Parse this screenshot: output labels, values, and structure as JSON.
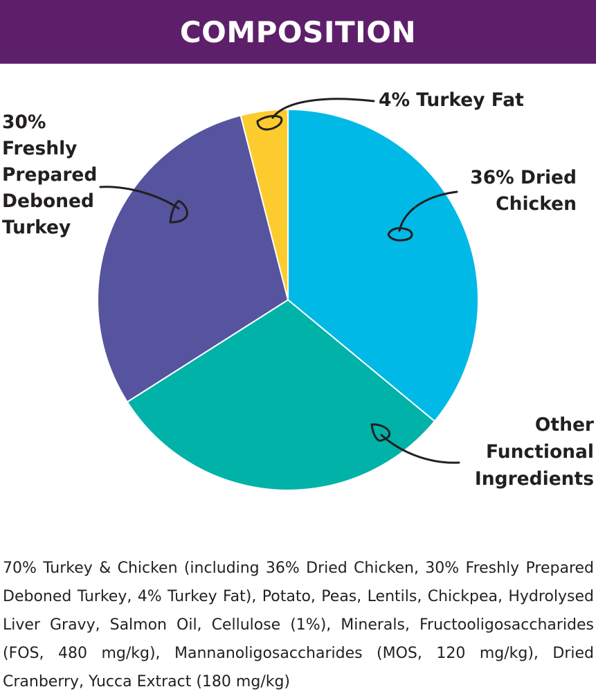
{
  "header": {
    "title": "COMPOSITION",
    "background_color": "#5e1f6a"
  },
  "chart_data": {
    "type": "pie",
    "title": "COMPOSITION",
    "slices": [
      {
        "label_lines": [
          "36% Dried",
          "Chicken"
        ],
        "value": 36,
        "color": "#00b9e6"
      },
      {
        "label_lines": [
          "Other",
          "Functional",
          "Ingredients"
        ],
        "value": 30,
        "color": "#00b2a8"
      },
      {
        "label_lines": [
          "30%",
          "Freshly",
          "Prepared",
          "Deboned",
          "Turkey"
        ],
        "value": 30,
        "color": "#56539f"
      },
      {
        "label_lines": [
          "4% Turkey Fat"
        ],
        "value": 4,
        "color": "#fccb2e"
      }
    ]
  },
  "composition_text": "70% Turkey & Chicken (including 36% Dried Chicken, 30% Freshly Prepared Deboned Turkey, 4% Turkey Fat), Potato, Peas, Lentils, Chickpea, Hydrolysed Liver Gravy, Salmon Oil, Cellulose (1%), Minerals, Fructooligosaccharides (FOS, 480 mg/kg), Mannanoligosaccharides (MOS, 120 mg/kg), Dried Cranberry, Yucca Extract (180 mg/kg)"
}
